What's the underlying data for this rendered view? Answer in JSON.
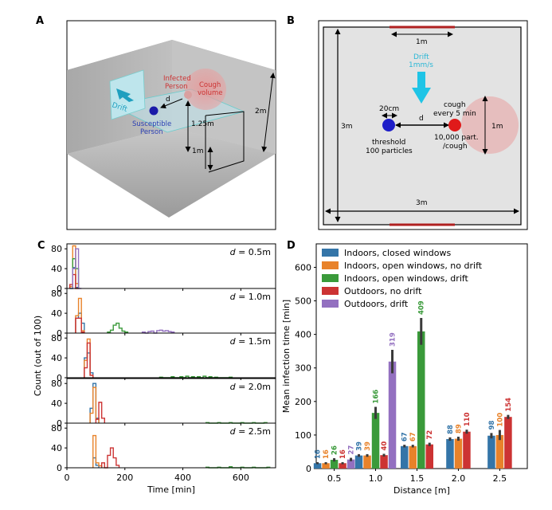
{
  "panels": {
    "a": {
      "label": "A",
      "drift": "Drift",
      "infected": [
        "Infected",
        "Person"
      ],
      "cough_volume": [
        "Cough",
        "volume"
      ],
      "susceptible": [
        "Susceptible",
        "Person"
      ],
      "d": "d",
      "h125": "1.25m",
      "h1": "1m",
      "h2": "2m"
    },
    "b": {
      "label": "B",
      "top_1m": "1m",
      "drift": [
        "Drift",
        "1mm/s"
      ],
      "width_20cm": "20cm",
      "d": "d",
      "cough": [
        "cough",
        "every 5 min"
      ],
      "side_3m": "3m",
      "right_1m": "1m",
      "threshold": [
        "threshold",
        "100 particles"
      ],
      "particles": [
        "10,000 part.",
        "/cough"
      ],
      "bottom_3m": "3m"
    },
    "c": {
      "label": "C"
    },
    "d": {
      "label": "D"
    }
  },
  "colors": {
    "blue": "#3475a8",
    "orange": "#e8822a",
    "green": "#3a9a3a",
    "red": "#cc3333",
    "purple": "#9370c0"
  },
  "chart_data": [
    {
      "type": "histogram",
      "panel": "C",
      "xlabel": "Time [min]",
      "ylabel": "Count (out of 100)",
      "xlim": [
        0,
        720
      ],
      "ylim": [
        0,
        90
      ],
      "xticks": [
        0,
        200,
        400,
        600
      ],
      "yticks": [
        0,
        40,
        80
      ],
      "bin_width": 10,
      "rows": [
        {
          "title": "d = 0.5m",
          "d_value": "0.5",
          "series": [
            {
              "name": "Indoors, closed windows",
              "color": "blue",
              "bins": [
                [
                  10,
                  0
                ],
                [
                  20,
                  42
                ],
                [
                  30,
                  2
                ]
              ]
            },
            {
              "name": "Indoors, open windows, no drift",
              "color": "orange",
              "bins": [
                [
                  10,
                  4
                ],
                [
                  20,
                  86
                ],
                [
                  30,
                  10
                ]
              ]
            },
            {
              "name": "Indoors, open windows, drift",
              "color": "green",
              "bins": [
                [
                  20,
                  60
                ],
                [
                  30,
                  40
                ]
              ]
            },
            {
              "name": "Outdoors, no drift",
              "color": "red",
              "bins": [
                [
                  10,
                  8
                ],
                [
                  20,
                  28
                ],
                [
                  30,
                  0
                ]
              ]
            },
            {
              "name": "Outdoors, drift",
              "color": "purple",
              "bins": [
                [
                  20,
                  40
                ],
                [
                  30,
                  80
                ],
                [
                  40,
                  0
                ]
              ]
            }
          ]
        },
        {
          "title": "d = 1.0m",
          "d_value": "1.0",
          "series": [
            {
              "name": "Indoors, closed windows",
              "color": "blue",
              "bins": [
                [
                  30,
                  30
                ],
                [
                  40,
                  40
                ],
                [
                  50,
                  20
                ]
              ]
            },
            {
              "name": "Indoors, open windows, no drift",
              "color": "orange",
              "bins": [
                [
                  30,
                  35
                ],
                [
                  40,
                  70
                ],
                [
                  50,
                  5
                ]
              ]
            },
            {
              "name": "Indoors, open windows, drift",
              "color": "green",
              "bins": [
                [
                  140,
                  2
                ],
                [
                  150,
                  6
                ],
                [
                  160,
                  16
                ],
                [
                  170,
                  20
                ],
                [
                  180,
                  10
                ],
                [
                  190,
                  4
                ],
                [
                  200,
                  2
                ]
              ]
            },
            {
              "name": "Outdoors, no drift",
              "color": "red",
              "bins": [
                [
                  30,
                  30
                ],
                [
                  40,
                  30
                ],
                [
                  50,
                  2
                ]
              ]
            },
            {
              "name": "Outdoors, drift",
              "color": "purple",
              "bins": [
                [
                  260,
                  2
                ],
                [
                  280,
                  3
                ],
                [
                  290,
                  4
                ],
                [
                  310,
                  5
                ],
                [
                  320,
                  6
                ],
                [
                  330,
                  4
                ],
                [
                  340,
                  5
                ],
                [
                  350,
                  3
                ],
                [
                  360,
                  2
                ]
              ]
            }
          ]
        },
        {
          "title": "d = 1.5m",
          "d_value": "1.5",
          "series": [
            {
              "name": "Indoors, closed windows",
              "color": "blue",
              "bins": [
                [
                  60,
                  40
                ],
                [
                  70,
                  50
                ],
                [
                  80,
                  10
                ]
              ]
            },
            {
              "name": "Indoors, open windows, no drift",
              "color": "orange",
              "bins": [
                [
                  60,
                  35
                ],
                [
                  70,
                  78
                ],
                [
                  80,
                  5
                ]
              ]
            },
            {
              "name": "Indoors, open windows, drift",
              "color": "green",
              "bins": [
                [
                  320,
                  1
                ],
                [
                  360,
                  2
                ],
                [
                  390,
                  2
                ],
                [
                  410,
                  3
                ],
                [
                  430,
                  2
                ],
                [
                  450,
                  2
                ],
                [
                  470,
                  3
                ],
                [
                  490,
                  2
                ],
                [
                  510,
                  1
                ],
                [
                  560,
                  1
                ]
              ]
            },
            {
              "name": "Outdoors, no drift",
              "color": "red",
              "bins": [
                [
                  60,
                  20
                ],
                [
                  70,
                  70
                ],
                [
                  80,
                  5
                ]
              ]
            },
            {
              "name": "Outdoors, drift",
              "color": "purple",
              "bins": []
            }
          ]
        },
        {
          "title": "d = 2.0m",
          "d_value": "2.0",
          "series": [
            {
              "name": "Indoors, closed windows",
              "color": "blue",
              "bins": [
                [
                  80,
                  30
                ],
                [
                  90,
                  80
                ],
                [
                  100,
                  10
                ]
              ]
            },
            {
              "name": "Indoors, open windows, no drift",
              "color": "orange",
              "bins": [
                [
                  80,
                  20
                ],
                [
                  90,
                  72
                ],
                [
                  100,
                  8
                ]
              ]
            },
            {
              "name": "Indoors, open windows, drift",
              "color": "green",
              "bins": [
                [
                  480,
                  1
                ],
                [
                  520,
                  1
                ],
                [
                  560,
                  1
                ],
                [
                  600,
                  1
                ],
                [
                  640,
                  1
                ],
                [
                  680,
                  1
                ]
              ]
            },
            {
              "name": "Outdoors, no drift",
              "color": "red",
              "bins": [
                [
                  100,
                  8
                ],
                [
                  110,
                  42
                ],
                [
                  120,
                  10
                ]
              ]
            },
            {
              "name": "Outdoors, drift",
              "color": "purple",
              "bins": []
            }
          ]
        },
        {
          "title": "d = 2.5m",
          "d_value": "2.5",
          "series": [
            {
              "name": "Indoors, closed windows",
              "color": "blue",
              "bins": [
                [
                  90,
                  20
                ],
                [
                  100,
                  5
                ]
              ]
            },
            {
              "name": "Indoors, open windows, no drift",
              "color": "orange",
              "bins": [
                [
                  90,
                  65
                ],
                [
                  100,
                  10
                ],
                [
                  110,
                  4
                ]
              ]
            },
            {
              "name": "Indoors, open windows, drift",
              "color": "green",
              "bins": [
                [
                  480,
                  1
                ],
                [
                  520,
                  1
                ],
                [
                  560,
                  2
                ],
                [
                  600,
                  1
                ],
                [
                  640,
                  1
                ],
                [
                  690,
                  1
                ]
              ]
            },
            {
              "name": "Outdoors, no drift",
              "color": "red",
              "bins": [
                [
                  120,
                  10
                ],
                [
                  140,
                  25
                ],
                [
                  150,
                  40
                ],
                [
                  160,
                  20
                ],
                [
                  170,
                  5
                ]
              ]
            },
            {
              "name": "Outdoors, drift",
              "color": "purple",
              "bins": []
            }
          ]
        }
      ]
    },
    {
      "type": "bar",
      "panel": "D",
      "xlabel": "Distance [m]",
      "ylabel": "Mean infection time [min]",
      "ylim": [
        0,
        670
      ],
      "yticks": [
        0,
        100,
        200,
        300,
        400,
        500,
        600
      ],
      "categories": [
        "0.5",
        "1.0",
        "1.5",
        "2.0",
        "2.5"
      ],
      "legend_position": "top-left",
      "series": [
        {
          "name": "Indoors, closed windows",
          "color": "blue",
          "values": [
            16,
            39,
            67,
            88,
            98
          ],
          "err": [
            3,
            4,
            4,
            5,
            8
          ]
        },
        {
          "name": "Indoors, open windows, no drift",
          "color": "orange",
          "values": [
            16,
            39,
            67,
            89,
            100
          ],
          "err": [
            3,
            4,
            4,
            6,
            15
          ]
        },
        {
          "name": "Indoors, open windows, drift",
          "color": "green",
          "values": [
            26,
            166,
            409,
            null,
            null
          ],
          "err": [
            5,
            18,
            40,
            null,
            null
          ]
        },
        {
          "name": "Outdoors, no drift",
          "color": "red",
          "values": [
            16,
            40,
            72,
            110,
            154
          ],
          "err": [
            3,
            4,
            5,
            6,
            6
          ]
        },
        {
          "name": "Outdoors, drift",
          "color": "purple",
          "values": [
            27,
            319,
            null,
            null,
            null
          ],
          "err": [
            5,
            35,
            null,
            null,
            null
          ]
        }
      ]
    }
  ]
}
